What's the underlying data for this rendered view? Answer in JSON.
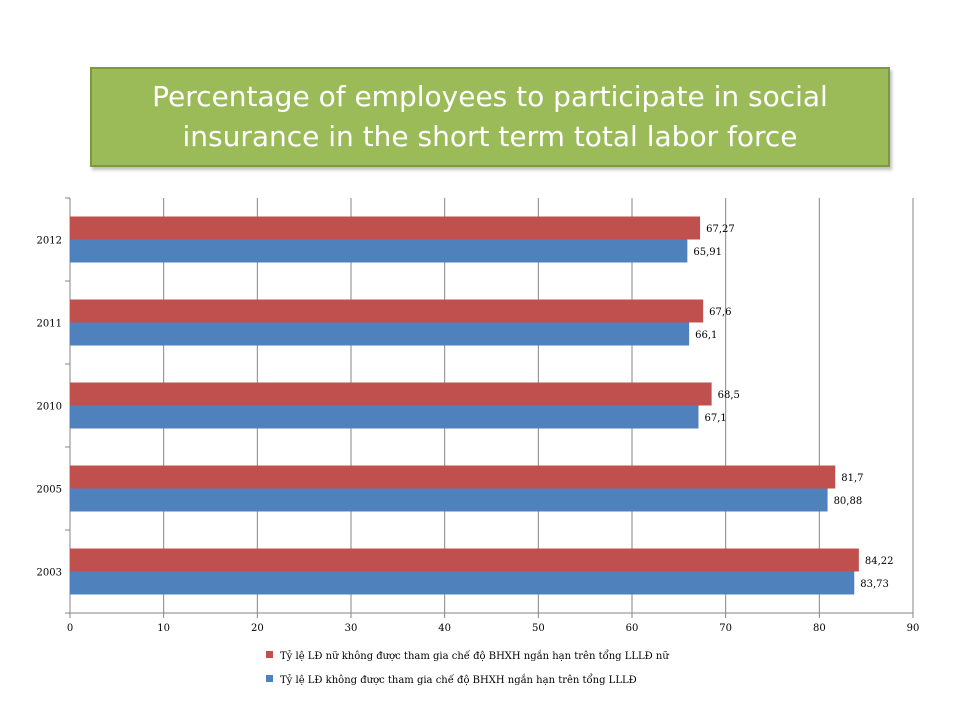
{
  "title": "Percentage of employees to participate in social insurance in the short term total labor force",
  "chart_data": {
    "type": "bar",
    "orientation": "horizontal",
    "categories": [
      "2003",
      "2005",
      "2010",
      "2011",
      "2012"
    ],
    "series": [
      {
        "name": "Tỷ lệ LĐ nữ không được tham gia chế độ BHXH ngắn hạn trên tổng LLLĐ nữ",
        "color": "#c0504d",
        "values": [
          84.22,
          81.7,
          68.5,
          67.6,
          67.27
        ],
        "labels": [
          "84,22",
          "81,7",
          "68,5",
          "67,6",
          "67,27"
        ]
      },
      {
        "name": "Tỷ lệ LĐ không được tham gia chế độ BHXH ngắn hạn trên tổng LLLĐ",
        "color": "#4f81bd",
        "values": [
          83.73,
          80.88,
          67.1,
          66.1,
          65.91
        ],
        "labels": [
          "83,73",
          "80,88",
          "67,1",
          "66,1",
          "65,91"
        ]
      }
    ],
    "xlim": [
      0,
      90
    ],
    "xticks": [
      0,
      10,
      20,
      30,
      40,
      50,
      60,
      70,
      80,
      90
    ],
    "grid": true,
    "legend": "bottom"
  }
}
